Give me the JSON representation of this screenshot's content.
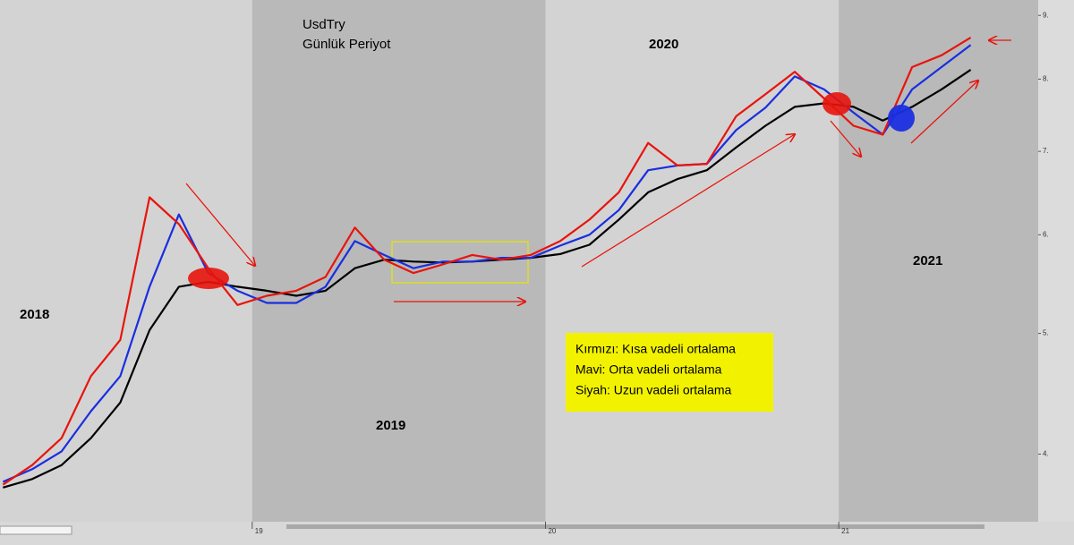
{
  "chart_data": {
    "type": "line",
    "title": "UsdTry",
    "subtitle": "Günlük Periyot",
    "annotations": [
      "2018",
      "2019",
      "2020",
      "2021"
    ],
    "x": [
      2018.15,
      2018.25,
      2018.35,
      2018.45,
      2018.55,
      2018.65,
      2018.75,
      2018.85,
      2018.95,
      2019.05,
      2019.15,
      2019.25,
      2019.35,
      2019.45,
      2019.55,
      2019.65,
      2019.75,
      2019.85,
      2019.95,
      2020.05,
      2020.15,
      2020.25,
      2020.35,
      2020.45,
      2020.55,
      2020.65,
      2020.75,
      2020.85,
      2020.95,
      2021.05,
      2021.15,
      2021.25,
      2021.35,
      2021.45
    ],
    "series": [
      {
        "name": "Kırmızı: Kısa vadeli ortalama",
        "color": "#e8140c",
        "values": [
          3.78,
          3.92,
          4.12,
          4.62,
          4.94,
          6.43,
          6.12,
          5.64,
          5.27,
          5.36,
          5.41,
          5.55,
          6.08,
          5.73,
          5.59,
          5.68,
          5.78,
          5.73,
          5.78,
          5.93,
          6.17,
          6.49,
          7.11,
          6.82,
          6.84,
          7.47,
          7.78,
          8.11,
          7.72,
          7.34,
          7.22,
          8.18,
          8.36,
          8.64
        ]
      },
      {
        "name": "Mavi: Orta vadeli ortalama",
        "color": "#1a2ee0",
        "values": [
          3.8,
          3.89,
          4.02,
          4.33,
          4.62,
          5.45,
          6.23,
          5.59,
          5.41,
          5.29,
          5.29,
          5.45,
          5.93,
          5.78,
          5.64,
          5.71,
          5.71,
          5.75,
          5.75,
          5.88,
          6.0,
          6.28,
          6.76,
          6.82,
          6.84,
          7.28,
          7.59,
          8.04,
          7.85,
          7.52,
          7.22,
          7.85,
          8.18,
          8.52
        ]
      },
      {
        "name": "Siyah: Uzun vadeli ortalama",
        "color": "#000000",
        "values": [
          3.76,
          3.82,
          3.92,
          4.12,
          4.4,
          5.03,
          5.45,
          5.5,
          5.45,
          5.41,
          5.36,
          5.41,
          5.64,
          5.73,
          5.71,
          5.7,
          5.71,
          5.73,
          5.75,
          5.79,
          5.89,
          6.17,
          6.49,
          6.65,
          6.76,
          7.05,
          7.34,
          7.6,
          7.65,
          7.6,
          7.41,
          7.6,
          7.85,
          8.14
        ]
      }
    ],
    "xlim": [
      2018.14,
      2021.68
    ],
    "xticks": [
      {
        "value": 2019,
        "label": "19"
      },
      {
        "value": 2020,
        "label": "20"
      },
      {
        "value": 2021,
        "label": "21"
      }
    ],
    "ylim": [
      3.53,
      9.26
    ],
    "yticks": [
      {
        "value": 4,
        "label": "4."
      },
      {
        "value": 5,
        "label": "5."
      },
      {
        "value": 6,
        "label": "6."
      },
      {
        "value": 7,
        "label": "7."
      },
      {
        "value": 8,
        "label": "8."
      },
      {
        "value": 9,
        "label": "9."
      }
    ],
    "log_scale": true,
    "grid": false,
    "legend": "center"
  }
}
